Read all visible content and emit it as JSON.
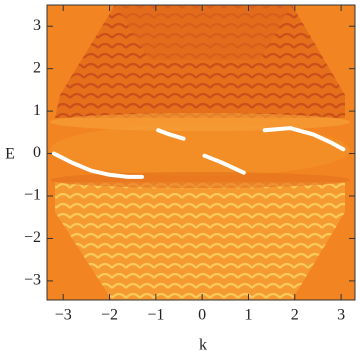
{
  "chart_data": {
    "type": "density",
    "x_label": "k",
    "y_label": "E",
    "xlim": [
      -3.35,
      3.3
    ],
    "ylim": [
      -3.45,
      3.5
    ],
    "xticks": [
      {
        "value": -3,
        "label": "−3"
      },
      {
        "value": -2,
        "label": "−2"
      },
      {
        "value": -1,
        "label": "−1"
      },
      0,
      1,
      2,
      3
    ],
    "yticks": [
      {
        "value": -3,
        "label": "−3"
      },
      {
        "value": -2,
        "label": "−2"
      },
      {
        "value": -1,
        "label": "−1"
      },
      0,
      1,
      2,
      3
    ],
    "series": [
      {
        "color": "#ffffff",
        "x": [
          -3.2,
          -2.8,
          -2.4,
          -2.0,
          -1.6,
          -1.3,
          null,
          -0.95,
          -0.7,
          -0.4,
          null,
          0.05,
          0.4,
          0.9,
          null,
          1.35,
          1.9,
          2.4,
          2.8,
          3.05
        ],
        "y": [
          0.0,
          -0.22,
          -0.4,
          -0.5,
          -0.55,
          -0.55,
          null,
          0.55,
          0.45,
          0.35,
          null,
          -0.05,
          -0.2,
          -0.45,
          null,
          0.55,
          0.6,
          0.45,
          0.25,
          0.1
        ]
      }
    ]
  }
}
